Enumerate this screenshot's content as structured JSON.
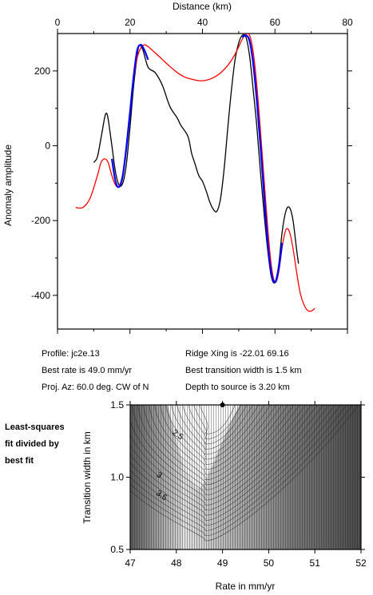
{
  "colors": {
    "observed": "#000000",
    "best_fit_model": "#ff0000",
    "fit_window": "#0000ff",
    "contour_dark": "#3a3a3a",
    "contour_light": "#ffffff"
  },
  "info": {
    "profile": "Profile: jc2e.13",
    "best_rate": "Best rate is 49.0 mm/yr",
    "proj_az": "Proj. Az: 60.0 deg. CW of N",
    "ridge_xing": "Ridge Xing is -22.01 69.16",
    "best_width": "Best transition width is 1.5 km",
    "depth": "Depth to source is   3.20 km"
  },
  "side_label": [
    "Least-squares",
    "fit divided by",
    "best fit"
  ],
  "chart_data": [
    {
      "type": "line",
      "xlabel": "Distance (km)",
      "ylabel": "Anomaly amplitude",
      "xlim": [
        0,
        80
      ],
      "ylim": [
        -490,
        300
      ],
      "x_ticks": [
        "0",
        "20",
        "40",
        "60",
        "80"
      ],
      "y_ticks": [
        "200",
        "0",
        "-200",
        "-400"
      ],
      "series": [
        {
          "key": "observed",
          "points": [
            [
              10,
              -45
            ],
            [
              11,
              -30
            ],
            [
              12,
              20
            ],
            [
              13,
              75
            ],
            [
              13.5,
              87
            ],
            [
              14,
              70
            ],
            [
              15,
              0
            ],
            [
              16,
              -70
            ],
            [
              17,
              -105
            ],
            [
              18,
              -100
            ],
            [
              19,
              -50
            ],
            [
              20,
              50
            ],
            [
              21,
              160
            ],
            [
              22,
              240
            ],
            [
              22.5,
              268
            ],
            [
              23.5,
              258
            ],
            [
              25,
              210
            ],
            [
              27,
              195
            ],
            [
              29,
              160
            ],
            [
              31,
              105
            ],
            [
              33,
              75
            ],
            [
              34,
              55
            ],
            [
              36,
              25
            ],
            [
              37,
              -20
            ],
            [
              38,
              -50
            ],
            [
              39,
              -80
            ],
            [
              40,
              -95
            ],
            [
              41,
              -120
            ],
            [
              42,
              -150
            ],
            [
              43,
              -170
            ],
            [
              44,
              -175
            ],
            [
              45,
              -140
            ],
            [
              46,
              -60
            ],
            [
              47,
              50
            ],
            [
              48,
              150
            ],
            [
              49,
              230
            ],
            [
              50,
              275
            ],
            [
              51,
              295
            ],
            [
              52,
              290
            ],
            [
              53,
              240
            ],
            [
              54,
              150
            ],
            [
              55,
              50
            ],
            [
              56,
              -70
            ],
            [
              57,
              -180
            ],
            [
              58,
              -280
            ],
            [
              59,
              -350
            ],
            [
              60,
              -365
            ],
            [
              61,
              -320
            ],
            [
              62,
              -230
            ],
            [
              63,
              -175
            ],
            [
              64,
              -165
            ],
            [
              65,
              -200
            ],
            [
              66,
              -280
            ],
            [
              66.5,
              -315
            ]
          ]
        },
        {
          "key": "best_fit_model",
          "points": [
            [
              5,
              -165
            ],
            [
              7,
              -165
            ],
            [
              9,
              -140
            ],
            [
              11,
              -80
            ],
            [
              12,
              -45
            ],
            [
              13,
              -35
            ],
            [
              14,
              -45
            ],
            [
              15,
              -80
            ],
            [
              16,
              -105
            ],
            [
              17,
              -108
            ],
            [
              18,
              -75
            ],
            [
              19,
              0
            ],
            [
              20,
              90
            ],
            [
              21,
              175
            ],
            [
              22,
              235
            ],
            [
              23,
              262
            ],
            [
              24,
              270
            ],
            [
              25,
              265
            ],
            [
              27,
              248
            ],
            [
              29,
              230
            ],
            [
              31,
              212
            ],
            [
              33,
              196
            ],
            [
              35,
              184
            ],
            [
              37,
              178
            ],
            [
              39,
              174
            ],
            [
              41,
              175
            ],
            [
              43,
              182
            ],
            [
              45,
              195
            ],
            [
              47,
              215
            ],
            [
              49,
              245
            ],
            [
              51,
              285
            ],
            [
              52,
              298
            ],
            [
              53,
              295
            ],
            [
              54,
              250
            ],
            [
              55,
              160
            ],
            [
              56,
              40
            ],
            [
              57,
              -90
            ],
            [
              58,
              -220
            ],
            [
              59,
              -320
            ],
            [
              60,
              -365
            ],
            [
              61,
              -340
            ],
            [
              62,
              -270
            ],
            [
              63,
              -225
            ],
            [
              64,
              -230
            ],
            [
              65,
              -275
            ],
            [
              66,
              -340
            ],
            [
              67,
              -395
            ],
            [
              68,
              -425
            ],
            [
              69,
              -440
            ],
            [
              70,
              -442
            ],
            [
              71,
              -435
            ]
          ]
        },
        {
          "key": "fit_window",
          "points": [
            [
              15,
              -35
            ],
            [
              16,
              -95
            ],
            [
              17,
              -110
            ],
            [
              18,
              -80
            ],
            [
              19,
              -5
            ],
            [
              20,
              90
            ],
            [
              21,
              185
            ],
            [
              22,
              255
            ],
            [
              23,
              270
            ],
            [
              24,
              255
            ],
            [
              25,
              230
            ],
            [
              51,
              290
            ],
            [
              52,
              295
            ],
            [
              53,
              280
            ],
            [
              54,
              220
            ],
            [
              55,
              120
            ],
            [
              56,
              0
            ],
            [
              57,
              -130
            ],
            [
              58,
              -260
            ],
            [
              59,
              -340
            ],
            [
              60,
              -365
            ],
            [
              61,
              -330
            ],
            [
              62,
              -260
            ]
          ]
        }
      ]
    },
    {
      "type": "heatmap",
      "xlabel": "Rate in mm/yr",
      "ylabel": "Transition width in km",
      "xlim": [
        47,
        52
      ],
      "ylim": [
        0.5,
        1.5
      ],
      "x_ticks": [
        "47",
        "48",
        "49",
        "50",
        "51",
        "52"
      ],
      "y_ticks": [
        "1.5",
        "1.0",
        "0.5"
      ],
      "best_point": [
        49.0,
        1.5
      ],
      "contour_labels": [
        {
          "text": "2.5",
          "x": 48.0,
          "y": 1.28
        },
        {
          "text": "3",
          "x": 47.6,
          "y": 1.0
        },
        {
          "text": "3.5",
          "x": 47.65,
          "y": 0.86
        }
      ]
    }
  ]
}
